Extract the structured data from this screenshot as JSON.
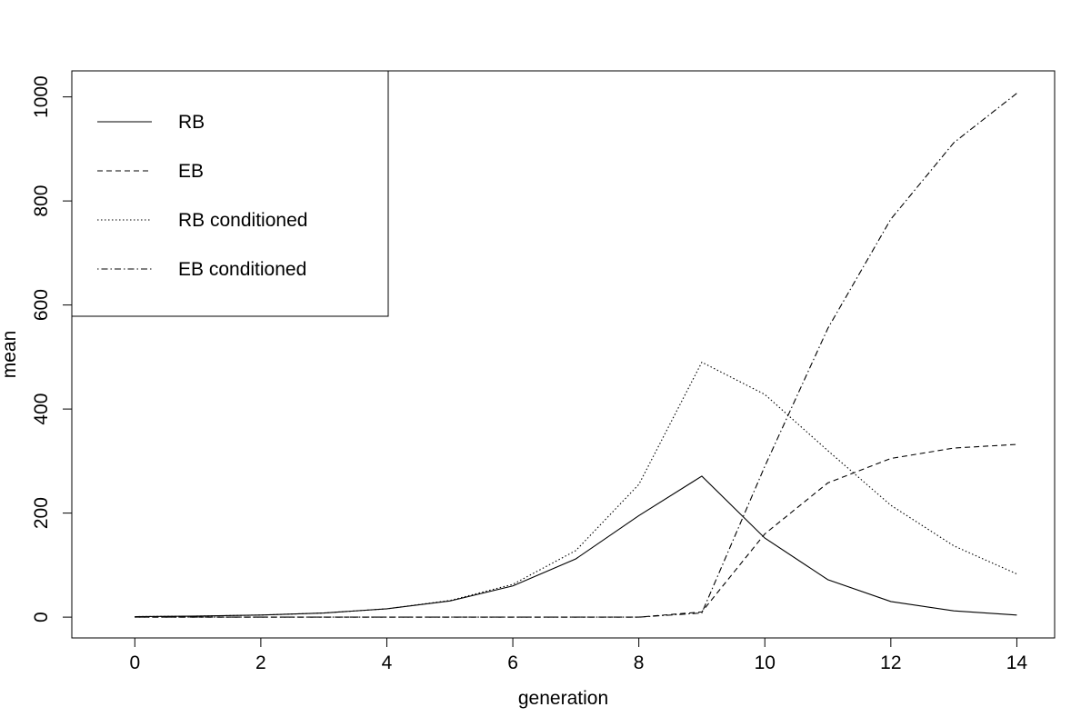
{
  "chart_data": {
    "type": "line",
    "xlabel": "generation",
    "ylabel": "mean",
    "xlim": [
      -1,
      14.6
    ],
    "ylim": [
      -40,
      1050
    ],
    "xticks": [
      0,
      2,
      4,
      6,
      8,
      10,
      12,
      14
    ],
    "yticks": [
      0,
      200,
      400,
      600,
      800,
      1000
    ],
    "grid": false,
    "legend_position": "top-left",
    "x": [
      0,
      1,
      2,
      3,
      4,
      5,
      6,
      7,
      8,
      9,
      10,
      11,
      12,
      13,
      14
    ],
    "series": [
      {
        "name": "RB",
        "line_style": "solid",
        "values": [
          1,
          2,
          4,
          8,
          16,
          31,
          60,
          112,
          195,
          271,
          152,
          72,
          30,
          12,
          4
        ]
      },
      {
        "name": "EB",
        "line_style": "dashed",
        "values": [
          0,
          0,
          0,
          0,
          0,
          0,
          0,
          0,
          0,
          10,
          160,
          258,
          305,
          325,
          332
        ]
      },
      {
        "name": "RB conditioned",
        "line_style": "dotted",
        "values": [
          1,
          2,
          4,
          8,
          16,
          32,
          63,
          128,
          255,
          490,
          428,
          320,
          215,
          137,
          83
        ]
      },
      {
        "name": "EB conditioned",
        "line_style": "dotdash",
        "values": [
          0,
          0,
          0,
          0,
          0,
          0,
          0,
          0,
          0,
          8,
          290,
          555,
          765,
          912,
          1007
        ]
      }
    ]
  }
}
